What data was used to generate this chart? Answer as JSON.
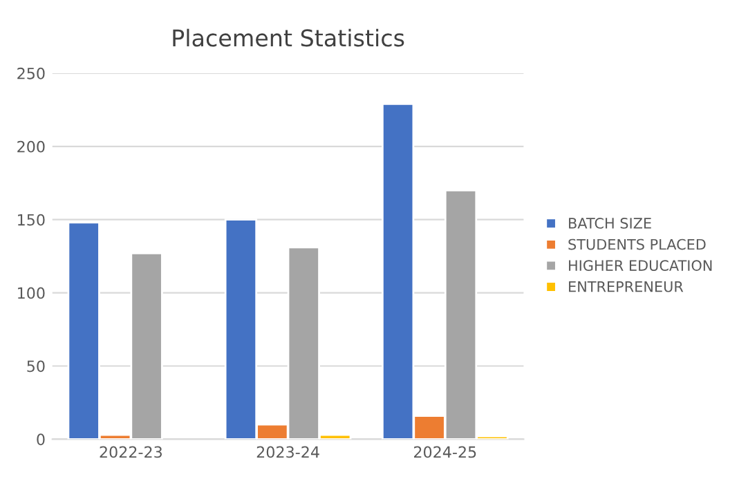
{
  "chart_data": {
    "type": "bar",
    "title": "Placement Statistics",
    "categories": [
      "2022-23",
      "2023-24",
      "2024-25"
    ],
    "series": [
      {
        "name": "BATCH SIZE",
        "color": "#4472c4",
        "values": [
          148,
          150,
          229
        ]
      },
      {
        "name": "STUDENTS PLACED",
        "color": "#ed7d31",
        "values": [
          3,
          10,
          16
        ]
      },
      {
        "name": "HIGHER EDUCATION",
        "color": "#a5a5a5",
        "values": [
          127,
          131,
          170
        ]
      },
      {
        "name": "ENTREPRENEUR",
        "color": "#ffc000",
        "values": [
          null,
          3,
          2
        ]
      }
    ],
    "ylim": [
      0,
      250
    ],
    "yticks": [
      0,
      50,
      100,
      150,
      200,
      250
    ],
    "grid": "y",
    "legend": "right"
  }
}
